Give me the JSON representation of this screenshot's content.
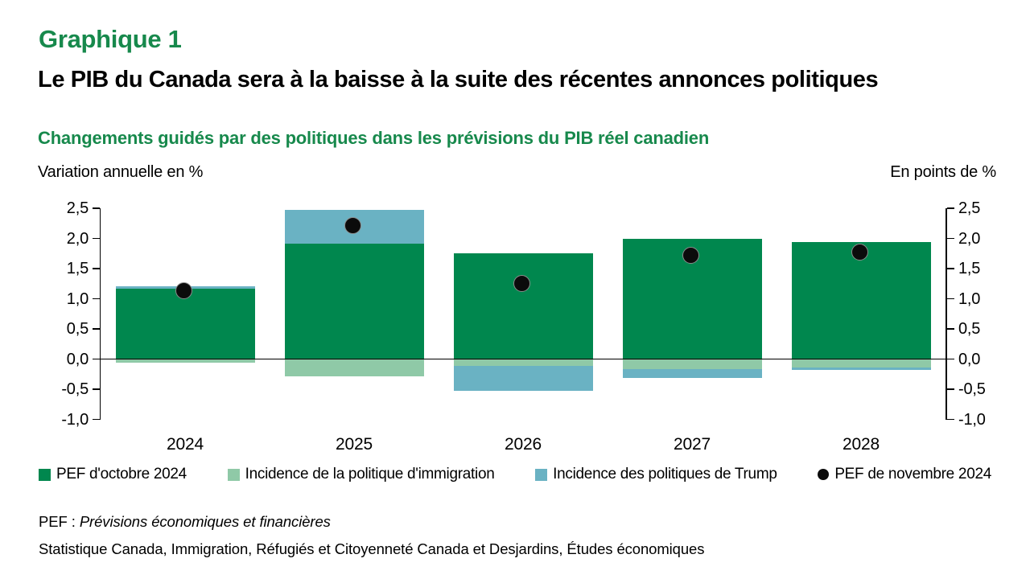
{
  "header": {
    "graphique_label": "Graphique 1",
    "title": "Le PIB du Canada sera à la baisse à la suite des récentes annonces politiques",
    "subtitle": "Changements guidés par des politiques dans les prévisions du PIB réel canadien"
  },
  "axis_units": {
    "left": "Variation annuelle en %",
    "right": "En points de %"
  },
  "chart_data": {
    "type": "bar",
    "stacked": true,
    "categories": [
      "2024",
      "2025",
      "2026",
      "2027",
      "2028"
    ],
    "series": [
      {
        "name": "PEF d'octobre 2024",
        "key": "pef_octobre",
        "render": "bar",
        "color": "#00874E",
        "values": [
          1.17,
          1.91,
          1.75,
          2.0,
          1.94
        ]
      },
      {
        "name": "Incidence de la politique d'immigration",
        "key": "immigration",
        "render": "bar",
        "color": "#8FC9A7",
        "values": [
          -0.06,
          -0.29,
          -0.11,
          -0.16,
          -0.14
        ]
      },
      {
        "name": "Incidence des politiques de Trump",
        "key": "trump",
        "render": "bar",
        "color": "#6AB2C3",
        "values": [
          0.04,
          0.57,
          -0.41,
          -0.15,
          -0.04
        ]
      },
      {
        "name": "PEF de novembre 2024",
        "key": "pef_novembre",
        "render": "point",
        "color": "#0B0B0B",
        "values": [
          1.12,
          2.2,
          1.23,
          1.7,
          1.76
        ]
      }
    ],
    "y_axis": {
      "min": -1.0,
      "max": 2.5,
      "step": 0.5,
      "tick_labels": [
        "2,5",
        "2,0",
        "1,5",
        "1,0",
        "0,5",
        "0,0",
        "-0,5",
        "-1,0"
      ],
      "sides": [
        "left",
        "right"
      ]
    },
    "grid": false,
    "legend_position": "bottom",
    "stacking_rule": "positive segments stack upward from 0 (pef_octobre then trump if positive); negative segments stack downward from 0 (immigration then trump if negative); pef_novembre drawn as black dots"
  },
  "legend": {
    "items": [
      {
        "label": "PEF d'octobre 2024",
        "marker": "square",
        "color": "#00874E"
      },
      {
        "label": "Incidence de la politique d'immigration",
        "marker": "square",
        "color": "#8FC9A7"
      },
      {
        "label": "Incidence des politiques de Trump",
        "marker": "square",
        "color": "#6AB2C3"
      },
      {
        "label": "PEF de novembre 2024",
        "marker": "circle",
        "color": "#0B0B0B"
      }
    ]
  },
  "footnote": {
    "prefix": "PEF : ",
    "italic": "Prévisions économiques et financières"
  },
  "source": "Statistique Canada, Immigration, Réfugiés et Citoyenneté Canada et Desjardins, Études économiques",
  "colors": {
    "title_green": "#17894C",
    "bar_dark_green": "#00874E",
    "bar_light_green": "#8FC9A7",
    "bar_blue": "#6AB2C3",
    "dot_black": "#0B0B0B",
    "axis_black": "#000000"
  }
}
